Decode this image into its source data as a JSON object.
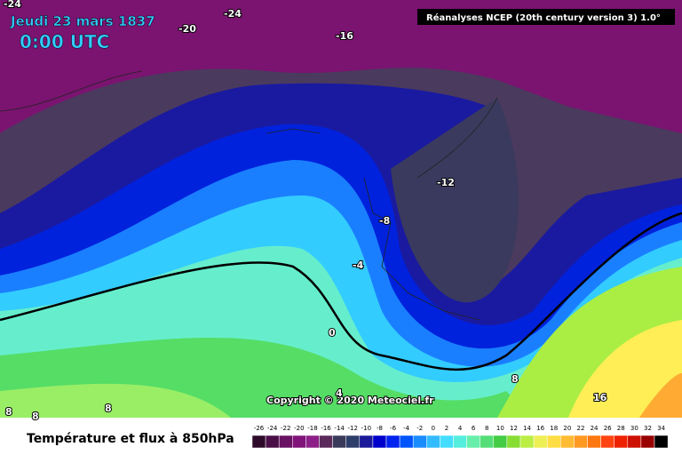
{
  "header": {
    "date": "Jeudi 23 mars 1837",
    "time": "0:00 UTC",
    "source": "Réanalyses NCEP (20th century version 3) 1.0°",
    "copyright": "Copyright © 2020 Meteociel.fr"
  },
  "isotherm_labels": [
    -24,
    -24,
    -20,
    -16,
    -12,
    -8,
    -4,
    0,
    4,
    8,
    8,
    8,
    8,
    16
  ],
  "legend": {
    "title": "Température et flux à 850hPa",
    "levels": [
      -26,
      -24,
      -22,
      -20,
      -18,
      -16,
      -14,
      -12,
      -10,
      -8,
      -6,
      -4,
      -2,
      0,
      2,
      4,
      6,
      8,
      10,
      12,
      14,
      16,
      18,
      20,
      22,
      24,
      26,
      28,
      30,
      32,
      34
    ],
    "colors": [
      "#2e0a2a",
      "#4b0f48",
      "#6a1263",
      "#80147a",
      "#8c2088",
      "#5a2a5a",
      "#3a3a5a",
      "#2d3e6a",
      "#1a1a9a",
      "#0000cc",
      "#0022ee",
      "#0055ff",
      "#1a8cff",
      "#33bbff",
      "#44ddff",
      "#55eedd",
      "#66eeaa",
      "#55dd77",
      "#44cc44",
      "#88dd33",
      "#bbee44",
      "#eeee55",
      "#ffdd44",
      "#ffbb33",
      "#ff9922",
      "#ff7711",
      "#ff4411",
      "#ee2200",
      "#cc1100",
      "#990000",
      "#000000"
    ]
  }
}
